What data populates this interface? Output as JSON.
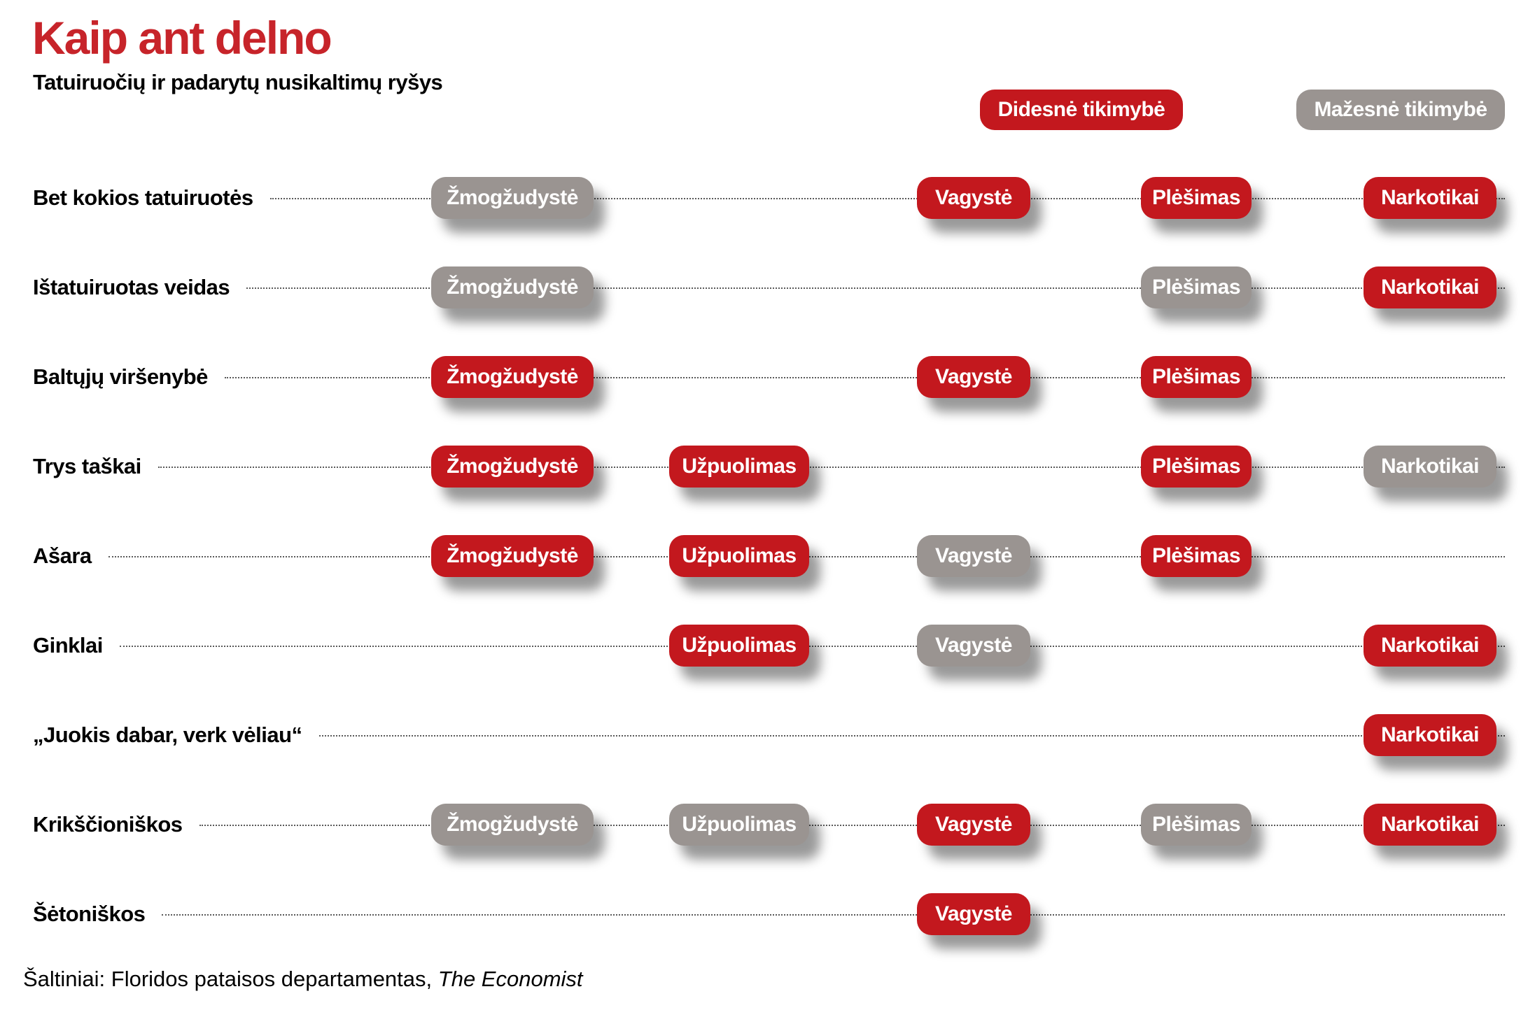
{
  "title": "Kaip ant delno",
  "subtitle": "Tatuiruočių ir padarytų nusikaltimų ryšys",
  "legend": {
    "higher_label": "Didesnė tikimybė",
    "lower_label": "Mažesnė tikimybė"
  },
  "colors": {
    "higher": "#c3181e",
    "lower": "#9a9491",
    "title_red": "#c7242a"
  },
  "source": {
    "text": "Šaltiniai: Floridos pataisos departamentas, ",
    "italic": "The Economist"
  },
  "chart_data": {
    "type": "table",
    "title": "Kaip ant delno",
    "subtitle": "Tatuiruočių ir padarytų nusikaltimų ryšys",
    "legend": {
      "higher": "Didesnė tikimybė",
      "lower": "Mažesnė tikimybė"
    },
    "columns": [
      "Žmogžudystė",
      "Užpuolimas",
      "Vagystė",
      "Plėšimas",
      "Narkotikai"
    ],
    "rows": [
      {
        "label": "Bet kokios tatuiruotės",
        "values": {
          "Žmogžudystė": "lower",
          "Vagystė": "higher",
          "Plėšimas": "higher",
          "Narkotikai": "higher"
        }
      },
      {
        "label": "Ištatuiruotas veidas",
        "values": {
          "Žmogžudystė": "lower",
          "Plėšimas": "lower",
          "Narkotikai": "higher"
        }
      },
      {
        "label": "Baltųjų viršenybė",
        "values": {
          "Žmogžudystė": "higher",
          "Vagystė": "higher",
          "Plėšimas": "higher"
        }
      },
      {
        "label": "Trys taškai",
        "values": {
          "Žmogžudystė": "higher",
          "Užpuolimas": "higher",
          "Plėšimas": "higher",
          "Narkotikai": "lower"
        }
      },
      {
        "label": "Ašara",
        "values": {
          "Žmogžudystė": "higher",
          "Užpuolimas": "higher",
          "Vagystė": "lower",
          "Plėšimas": "higher"
        }
      },
      {
        "label": "Ginklai",
        "values": {
          "Užpuolimas": "higher",
          "Vagystė": "lower",
          "Narkotikai": "higher"
        }
      },
      {
        "label": "„Juokis dabar, verk vėliau“",
        "values": {
          "Narkotikai": "higher"
        }
      },
      {
        "label": "Krikščioniškos",
        "values": {
          "Žmogžudystė": "lower",
          "Užpuolimas": "lower",
          "Vagystė": "higher",
          "Plėšimas": "lower",
          "Narkotikai": "higher"
        }
      },
      {
        "label": "Šėtoniškos",
        "values": {
          "Vagystė": "higher"
        }
      }
    ],
    "source": "Šaltiniai: Floridos pataisos departamentas, The Economist"
  }
}
